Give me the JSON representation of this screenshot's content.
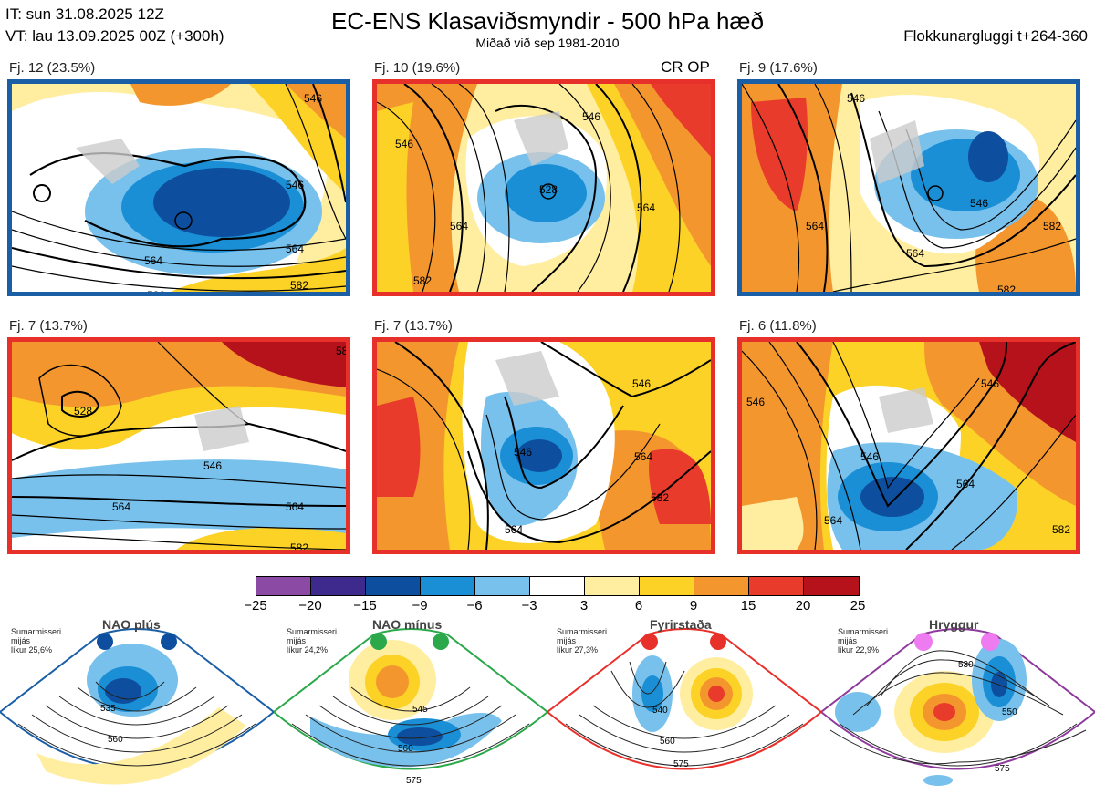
{
  "header": {
    "it_line": "IT: sun 31.08.2025 12Z",
    "vt_line": "VT: lau 13.09.2025 00Z  (+300h)",
    "title": "EC-ENS Klasaviðsmyndir - 500 hPa hæð",
    "subtitle": "Miðað við sep 1981-2010",
    "window": "Flokkunargluggi t+264-360"
  },
  "clusters": [
    {
      "label": "Fj. 12 (23.5%)",
      "frame_color": "#1a5fa6",
      "contours": [
        "546",
        "564",
        "582",
        "546",
        "564",
        "582"
      ]
    },
    {
      "label": "Fj. 10 (19.6%)",
      "frame_color": "#e8302a",
      "tag": "CR OP",
      "contours": [
        "528",
        "546",
        "564",
        "582",
        "546",
        "564"
      ]
    },
    {
      "label": "Fj. 9 (17.6%)",
      "frame_color": "#1a5fa6",
      "contours": [
        "546",
        "564",
        "582",
        "546",
        "564",
        "582"
      ]
    },
    {
      "label": "Fj. 7 (13.7%)",
      "frame_color": "#e8302a",
      "contours": [
        "528",
        "546",
        "564",
        "582",
        "564",
        "582"
      ]
    },
    {
      "label": "Fj. 7 (13.7%)",
      "frame_color": "#e8302a",
      "contours": [
        "546",
        "564",
        "582",
        "546",
        "564",
        "582"
      ]
    },
    {
      "label": "Fj. 6 (11.8%)",
      "frame_color": "#e8302a",
      "contours": [
        "546",
        "564",
        "546",
        "564",
        "582",
        "546"
      ]
    }
  ],
  "colorbar": {
    "colors": [
      "#8b4aa3",
      "#3d2a8c",
      "#0d4f9e",
      "#1a8fd6",
      "#78c1ec",
      "#ffffff",
      "#ffeea0",
      "#fcd226",
      "#f4962e",
      "#e83b2c",
      "#b5121b"
    ],
    "ticks": [
      "−25",
      "−20",
      "−15",
      "−9",
      "−6",
      "−3",
      "3",
      "6",
      "9",
      "15",
      "20",
      "25"
    ]
  },
  "regimes": [
    {
      "name": "NAO plús",
      "meta": [
        "Sumarmisseri",
        "mijás",
        "líkur 25,6%"
      ],
      "color": "#1a5fa6",
      "contours": [
        "535",
        "560"
      ]
    },
    {
      "name": "NAO mínus",
      "meta": [
        "Sumarmisseri",
        "mijás",
        "líkur 24,2%"
      ],
      "color": "#2aa84a",
      "contours": [
        "545",
        "560",
        "575"
      ]
    },
    {
      "name": "Fyrirstaða",
      "meta": [
        "Sumarmisseri",
        "mijás",
        "líkur 27,3%"
      ],
      "color": "#e8302a",
      "contours": [
        "540",
        "560",
        "575"
      ]
    },
    {
      "name": "Hryggur",
      "meta": [
        "Sumarmisseri",
        "mijás",
        "líkur 22,9%"
      ],
      "color": "#8e3a9c",
      "contours": [
        "530",
        "550",
        "575"
      ]
    }
  ]
}
